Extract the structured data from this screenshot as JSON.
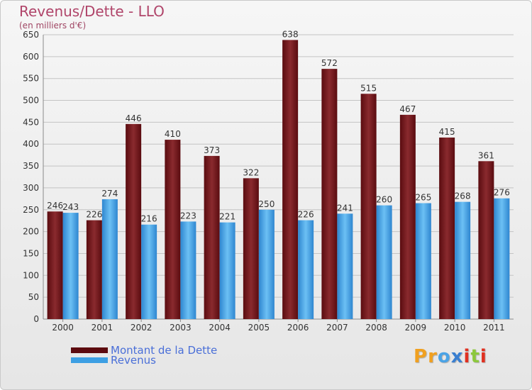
{
  "header": {
    "title": "Revenus/Dette - LLO",
    "subtitle": "(en milliers d'€)"
  },
  "chart_data": {
    "type": "bar",
    "categories": [
      "2000",
      "2001",
      "2002",
      "2003",
      "2004",
      "2005",
      "2006",
      "2007",
      "2008",
      "2009",
      "2010",
      "2011"
    ],
    "series": [
      {
        "name": "Montant de la Dette",
        "color": "#7a1a1e",
        "values": [
          246,
          226,
          446,
          410,
          373,
          322,
          638,
          572,
          515,
          467,
          415,
          361
        ]
      },
      {
        "name": "Revenus",
        "color": "#4aa3e6",
        "values": [
          243,
          274,
          216,
          223,
          221,
          250,
          226,
          241,
          260,
          265,
          268,
          276
        ]
      }
    ],
    "ylim": [
      0,
      650
    ],
    "yticks": [
      0,
      50,
      100,
      150,
      200,
      250,
      300,
      350,
      400,
      450,
      500,
      550,
      600,
      650
    ],
    "grid": true,
    "legend_position": "bottom-left"
  },
  "legend": {
    "debt_label": "Montant de la Dette",
    "revenue_label": "Revenus",
    "debt_color": "#5c0a0e",
    "revenue_color": "#3d9fe3"
  },
  "brand": {
    "text": "Proxiti",
    "letter_colors": [
      "#f0a020",
      "#f0a020",
      "#4aa3e6",
      "#3a7fd0",
      "#e03020",
      "#8cc83c",
      "#e03020"
    ]
  }
}
